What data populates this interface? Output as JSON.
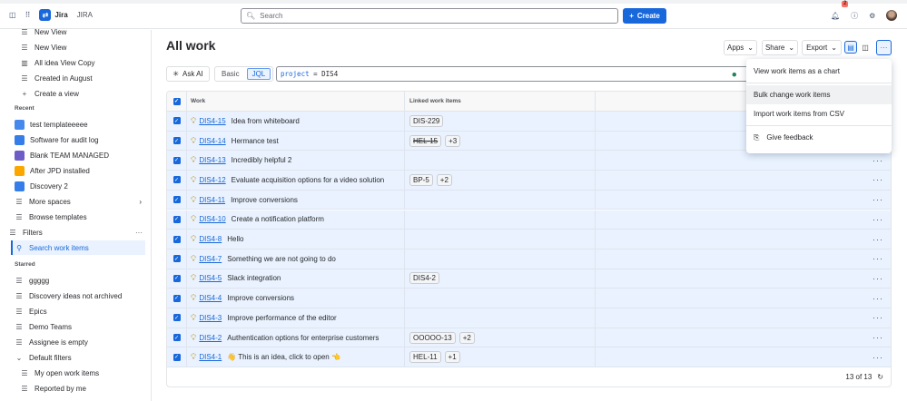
{
  "topbar": {
    "brand": "Jira",
    "site": "JIRA",
    "search_placeholder": "Search",
    "create_label": "Create",
    "notifications_count": "2"
  },
  "sidebar": {
    "views": [
      "New View",
      "New View",
      "All idea View Copy",
      "Created in August",
      "Create a view"
    ],
    "recent_label": "Recent",
    "recent": [
      {
        "label": "test templateeeee",
        "color": "#4688ec"
      },
      {
        "label": "Software for audit log",
        "color": "#357de8"
      },
      {
        "label": "Blank TEAM MANAGED",
        "color": "#6e5dc6"
      },
      {
        "label": "After JPD installed",
        "color": "#fca700"
      },
      {
        "label": "Discovery 2",
        "color": "#357de8"
      }
    ],
    "more_spaces": "More spaces",
    "browse_templates": "Browse templates",
    "filters_label": "Filters",
    "search_work_items": "Search work items",
    "starred_label": "Starred",
    "starred": [
      "ggggg",
      "Discovery ideas not archived",
      "Epics",
      "Demo Teams",
      "Assignee is empty"
    ],
    "default_filters": "Default filters",
    "defaults": [
      "My open work items",
      "Reported by me"
    ]
  },
  "main": {
    "title": "All work",
    "apps": "Apps",
    "share": "Share",
    "export": "Export",
    "ask_ai": "Ask AI",
    "basic": "Basic",
    "jql": "JQL",
    "jql_keyword": "project",
    "jql_op": "=",
    "jql_value": "DIS4",
    "columns": {
      "work": "Work",
      "linked": "Linked work items"
    },
    "rows": [
      {
        "key": "DIS4-15",
        "summary": "Idea from whiteboard",
        "links": [
          "DIS-229"
        ],
        "more": ""
      },
      {
        "key": "DIS4-14",
        "summary": "Hermance test",
        "links": [
          "HEL-15"
        ],
        "more": "+3",
        "strike": true
      },
      {
        "key": "DIS4-13",
        "summary": "Incredibly helpful 2",
        "links": [],
        "more": ""
      },
      {
        "key": "DIS4-12",
        "summary": "Evaluate acquisition options for a video solution",
        "links": [
          "BP-5"
        ],
        "more": "+2"
      },
      {
        "key": "DIS4-11",
        "summary": "Improve conversions",
        "links": [],
        "more": ""
      },
      {
        "key": "DIS4-10",
        "summary": "Create a notification platform",
        "links": [],
        "more": ""
      },
      {
        "key": "DIS4-8",
        "summary": "Hello",
        "links": [],
        "more": ""
      },
      {
        "key": "DIS4-7",
        "summary": "Something we are not going to do",
        "links": [],
        "more": ""
      },
      {
        "key": "DIS4-5",
        "summary": "Slack integration",
        "links": [
          "DIS4-2"
        ],
        "more": ""
      },
      {
        "key": "DIS4-4",
        "summary": "Improve conversions",
        "links": [],
        "more": ""
      },
      {
        "key": "DIS4-3",
        "summary": "Improve performance of the editor",
        "links": [],
        "more": ""
      },
      {
        "key": "DIS4-2",
        "summary": "Authentication options for enterprise customers",
        "links": [
          "OOOOO-13"
        ],
        "more": "+2"
      },
      {
        "key": "DIS4-1",
        "summary": "👋 This is an idea, click to open 👈",
        "links": [
          "HEL-11"
        ],
        "more": "+1"
      }
    ],
    "count": "13 of 13"
  },
  "menu": {
    "items": [
      "View work items as a chart",
      "Bulk change work items",
      "Import work items from CSV"
    ],
    "feedback": "Give feedback"
  }
}
